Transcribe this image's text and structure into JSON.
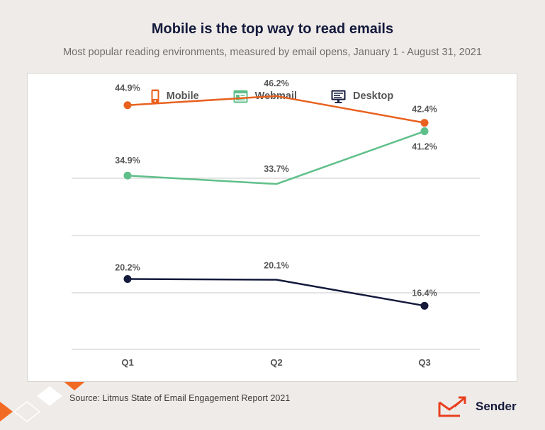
{
  "header": {
    "title": "Mobile is the top way to read emails",
    "subtitle": "Most popular reading environments, measured by email opens, January 1 - August 31, 2021"
  },
  "footer": {
    "source": "Source: Litmus State of Email Engagement Report 2021",
    "brand_name": "Sender"
  },
  "icons": {
    "mobile": "mobile-phone-icon",
    "webmail": "webmail-browser-icon",
    "desktop": "desktop-monitor-icon",
    "brand": "envelope-arrow-logo-icon"
  },
  "chart_data": {
    "type": "line",
    "title": "Mobile is the top way to read emails",
    "subtitle": "Most popular reading environments, measured by email opens, January 1 - August 31, 2021",
    "categories": [
      "Q1",
      "Q2",
      "Q3"
    ],
    "legend_position": "top-center",
    "grid": true,
    "series": [
      {
        "name": "Mobile",
        "values": [
          44.9,
          46.2,
          42.4
        ],
        "labels": [
          "44.9%",
          "46.2%",
          "42.4%"
        ],
        "color": "#e8611f"
      },
      {
        "name": "Webmail",
        "values": [
          34.9,
          33.7,
          41.2
        ],
        "labels": [
          "34.9%",
          "33.7%",
          "41.2%"
        ],
        "color": "#5fbf8a"
      },
      {
        "name": "Desktop",
        "values": [
          20.2,
          20.1,
          16.4
        ],
        "labels": [
          "20.2%",
          "20.1%",
          "16.4%"
        ],
        "color": "#141a3c"
      }
    ]
  }
}
